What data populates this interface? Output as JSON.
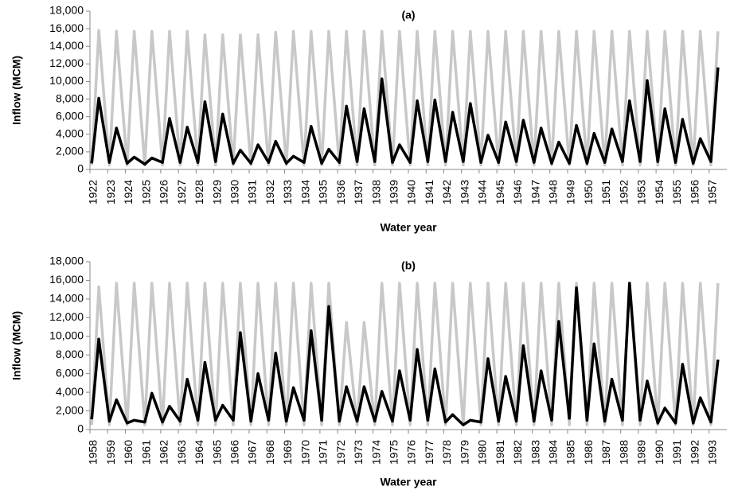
{
  "chart_data": [
    {
      "type": "line",
      "title": "(a)",
      "x_label": "Water year",
      "y_label": "Inflow (MCM)",
      "x": [
        1922.1,
        1922.5,
        1923.1,
        1923.5,
        1924.1,
        1924.5,
        1925.1,
        1925.5,
        1926.1,
        1926.5,
        1927.1,
        1927.5,
        1928.1,
        1928.5,
        1929.1,
        1929.5,
        1930.1,
        1930.5,
        1931.1,
        1931.5,
        1932.1,
        1932.5,
        1933.1,
        1933.5,
        1934.1,
        1934.5,
        1935.1,
        1935.5,
        1936.1,
        1936.5,
        1937.1,
        1937.5,
        1938.1,
        1938.5,
        1939.1,
        1939.5,
        1940.1,
        1940.5,
        1941.1,
        1941.5,
        1942.1,
        1942.5,
        1943.1,
        1943.5,
        1944.1,
        1944.5,
        1945.1,
        1945.5,
        1946.1,
        1946.5,
        1947.1,
        1947.5,
        1948.1,
        1948.5,
        1949.1,
        1949.5,
        1950.1,
        1950.5,
        1951.1,
        1951.5,
        1952.1,
        1952.5,
        1953.1,
        1953.5,
        1954.1,
        1954.5,
        1955.1,
        1955.5,
        1956.1,
        1956.5,
        1957.1,
        1957.5
      ],
      "series": [
        {
          "color": "#c8c8c8",
          "values": [
            500,
            15800,
            500,
            15700,
            500,
            15700,
            500,
            15700,
            500,
            15700,
            500,
            15700,
            500,
            15300,
            500,
            15300,
            500,
            15300,
            500,
            15300,
            500,
            15600,
            500,
            15700,
            500,
            15700,
            500,
            15700,
            500,
            15700,
            500,
            15700,
            500,
            15700,
            500,
            15700,
            500,
            15700,
            500,
            15700,
            500,
            15700,
            500,
            15700,
            500,
            15700,
            500,
            15700,
            500,
            15700,
            500,
            15700,
            500,
            15700,
            500,
            15700,
            500,
            15700,
            500,
            15700,
            500,
            15700,
            500,
            15700,
            500,
            15700,
            500,
            15700,
            500,
            15700,
            500,
            15700
          ]
        },
        {
          "color": "#000000",
          "values": [
            700,
            8100,
            800,
            4700,
            700,
            1400,
            600,
            1300,
            800,
            5800,
            800,
            4800,
            800,
            7700,
            900,
            6300,
            700,
            2200,
            700,
            2800,
            800,
            3200,
            700,
            1500,
            800,
            4900,
            700,
            2300,
            800,
            7200,
            900,
            6900,
            900,
            10300,
            800,
            2800,
            800,
            7800,
            900,
            7900,
            900,
            6500,
            900,
            7500,
            800,
            3900,
            800,
            5400,
            900,
            5600,
            800,
            4700,
            700,
            3100,
            700,
            5000,
            700,
            4100,
            800,
            4600,
            900,
            7800,
            900,
            10100,
            900,
            6900,
            800,
            5700,
            700,
            3500,
            900,
            11600
          ]
        }
      ],
      "xlim": [
        1922,
        1958
      ],
      "ylim": [
        0,
        18000
      ],
      "xticks": [
        1922,
        1923,
        1924,
        1925,
        1926,
        1927,
        1928,
        1929,
        1930,
        1931,
        1932,
        1933,
        1934,
        1935,
        1936,
        1937,
        1938,
        1939,
        1940,
        1941,
        1942,
        1943,
        1944,
        1945,
        1946,
        1947,
        1948,
        1949,
        1950,
        1951,
        1952,
        1953,
        1954,
        1955,
        1956,
        1957
      ],
      "yticks": [
        0,
        {
          "value": 2000,
          "label": "2,000"
        },
        {
          "value": 4000,
          "label": "4,000"
        },
        {
          "value": 6000,
          "label": "6,000"
        },
        {
          "value": 8000,
          "label": "8,000"
        },
        {
          "value": 10000,
          "label": "10,000"
        },
        {
          "value": 12000,
          "label": "12,000"
        },
        {
          "value": 14000,
          "label": "14,000"
        },
        {
          "value": 16000,
          "label": "16,000"
        },
        {
          "value": 18000,
          "label": "18,000"
        }
      ]
    },
    {
      "type": "line",
      "title": "(b)",
      "x_label": "Water year",
      "y_label": "Inflow (MCM)",
      "x": [
        1958.1,
        1958.5,
        1959.1,
        1959.5,
        1960.1,
        1960.5,
        1961.1,
        1961.5,
        1962.1,
        1962.5,
        1963.1,
        1963.5,
        1964.1,
        1964.5,
        1965.1,
        1965.5,
        1966.1,
        1966.5,
        1967.1,
        1967.5,
        1968.1,
        1968.5,
        1969.1,
        1969.5,
        1970.1,
        1970.5,
        1971.1,
        1971.5,
        1972.1,
        1972.5,
        1973.1,
        1973.5,
        1974.1,
        1974.5,
        1975.1,
        1975.5,
        1976.1,
        1976.5,
        1977.1,
        1977.5,
        1978.1,
        1978.5,
        1979.1,
        1979.5,
        1980.1,
        1980.5,
        1981.1,
        1981.5,
        1982.1,
        1982.5,
        1983.1,
        1983.5,
        1984.1,
        1984.5,
        1985.1,
        1985.5,
        1986.1,
        1986.5,
        1987.1,
        1987.5,
        1988.1,
        1988.5,
        1989.1,
        1989.5,
        1990.1,
        1990.5,
        1991.1,
        1991.5,
        1992.1,
        1992.5,
        1993.1,
        1993.5
      ],
      "series": [
        {
          "color": "#c8c8c8",
          "values": [
            500,
            15300,
            500,
            15700,
            500,
            15700,
            500,
            15700,
            500,
            15700,
            500,
            15700,
            500,
            15700,
            500,
            15700,
            500,
            15700,
            500,
            15700,
            500,
            15700,
            500,
            15700,
            500,
            15700,
            500,
            15700,
            500,
            11500,
            500,
            11500,
            500,
            15700,
            500,
            15700,
            500,
            15700,
            500,
            15700,
            500,
            15700,
            500,
            15700,
            500,
            15700,
            500,
            15700,
            500,
            15700,
            500,
            15700,
            500,
            15700,
            500,
            15700,
            500,
            15700,
            500,
            15700,
            500,
            15700,
            500,
            15700,
            500,
            15700,
            500,
            15700,
            500,
            15700,
            500,
            15700
          ]
        },
        {
          "color": "#000000",
          "values": [
            1100,
            9700,
            900,
            3200,
            700,
            1000,
            800,
            3900,
            800,
            2500,
            900,
            5400,
            1000,
            7200,
            1000,
            2600,
            1000,
            10400,
            900,
            6000,
            1000,
            8200,
            900,
            4500,
            1000,
            10600,
            1000,
            13200,
            900,
            4600,
            900,
            4600,
            900,
            4100,
            900,
            6300,
            1000,
            8600,
            1000,
            6500,
            800,
            1600,
            500,
            1000,
            800,
            7600,
            900,
            5700,
            900,
            9000,
            900,
            6300,
            1000,
            11600,
            1200,
            15200,
            1000,
            9200,
            900,
            5400,
            1000,
            15700,
            1000,
            5200,
            700,
            2300,
            700,
            7000,
            700,
            3400,
            800,
            7500
          ]
        }
      ],
      "xlim": [
        1958,
        1994
      ],
      "ylim": [
        0,
        18000
      ],
      "xticks": [
        1958,
        1959,
        1960,
        1961,
        1962,
        1963,
        1964,
        1965,
        1966,
        1967,
        1968,
        1969,
        1970,
        1971,
        1972,
        1973,
        1974,
        1975,
        1976,
        1977,
        1978,
        1979,
        1980,
        1981,
        1982,
        1983,
        1984,
        1985,
        1986,
        1987,
        1988,
        1989,
        1990,
        1991,
        1992,
        1993
      ],
      "yticks": [
        0,
        {
          "value": 2000,
          "label": "2,000"
        },
        {
          "value": 4000,
          "label": "4,000"
        },
        {
          "value": 6000,
          "label": "6,000"
        },
        {
          "value": 8000,
          "label": "8,000"
        },
        {
          "value": 10000,
          "label": "10,000"
        },
        {
          "value": 12000,
          "label": "12,000"
        },
        {
          "value": 14000,
          "label": "14,000"
        },
        {
          "value": 16000,
          "label": "16,000"
        },
        {
          "value": 18000,
          "label": "18,000"
        }
      ]
    }
  ]
}
